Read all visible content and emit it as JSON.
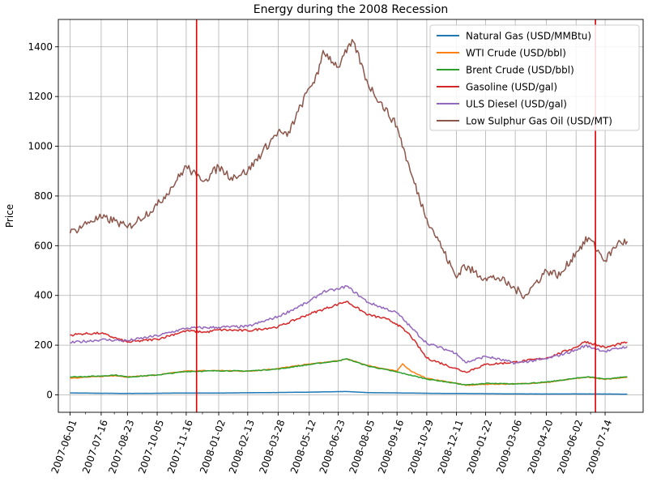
{
  "chart_data": {
    "type": "line",
    "title": "Energy during the 2008 Recession",
    "xlabel": "",
    "ylabel": "Price",
    "ylim": [
      -70,
      1510
    ],
    "xlim": [
      "2007-05-15",
      "2009-09-07"
    ],
    "grid": true,
    "legend_position": "top-right",
    "x_ticks": [
      "2007-06-01",
      "2007-07-16",
      "2007-08-23",
      "2007-10-05",
      "2007-11-16",
      "2008-01-02",
      "2008-02-13",
      "2008-03-28",
      "2008-05-12",
      "2008-06-23",
      "2008-08-05",
      "2008-09-16",
      "2008-10-29",
      "2008-12-11",
      "2009-01-22",
      "2009-03-06",
      "2009-04-20",
      "2009-06-02",
      "2009-07-14"
    ],
    "y_ticks": [
      0,
      200,
      400,
      600,
      800,
      1000,
      1200,
      1400
    ],
    "vertical_lines": [
      {
        "x": "2007-12-01",
        "color": "#e00000"
      },
      {
        "x": "2009-06-30",
        "color": "#e00000"
      }
    ],
    "series": [
      {
        "name": "Natural Gas (USD/MMBtu)",
        "color": "#1f77b4",
        "points": [
          [
            "2007-06-01",
            8
          ],
          [
            "2007-07-16",
            6.5
          ],
          [
            "2007-08-23",
            6
          ],
          [
            "2007-10-05",
            6.5
          ],
          [
            "2007-11-16",
            7.5
          ],
          [
            "2008-01-02",
            7.5
          ],
          [
            "2008-02-13",
            8.5
          ],
          [
            "2008-03-28",
            9.5
          ],
          [
            "2008-05-12",
            11
          ],
          [
            "2008-06-23",
            13
          ],
          [
            "2008-07-05",
            13.5
          ],
          [
            "2008-08-05",
            9
          ],
          [
            "2008-09-16",
            8
          ],
          [
            "2008-10-29",
            6.5
          ],
          [
            "2008-12-11",
            5.5
          ],
          [
            "2009-01-22",
            5
          ],
          [
            "2009-03-06",
            4
          ],
          [
            "2009-04-20",
            3.5
          ],
          [
            "2009-06-02",
            3.8
          ],
          [
            "2009-07-14",
            3.5
          ],
          [
            "2009-08-15",
            3
          ]
        ]
      },
      {
        "name": "WTI Crude (USD/bbl)",
        "color": "#ff7f0e",
        "points": [
          [
            "2007-06-01",
            68
          ],
          [
            "2007-07-16",
            74
          ],
          [
            "2007-08-05",
            78
          ],
          [
            "2007-08-23",
            72
          ],
          [
            "2007-10-05",
            80
          ],
          [
            "2007-11-16",
            96
          ],
          [
            "2008-01-02",
            98
          ],
          [
            "2008-02-13",
            95
          ],
          [
            "2008-03-28",
            106
          ],
          [
            "2008-05-12",
            124
          ],
          [
            "2008-06-23",
            137
          ],
          [
            "2008-07-05",
            145
          ],
          [
            "2008-08-05",
            118
          ],
          [
            "2008-09-16",
            95
          ],
          [
            "2008-09-24",
            125
          ],
          [
            "2008-10-05",
            98
          ],
          [
            "2008-10-29",
            66
          ],
          [
            "2008-12-11",
            47
          ],
          [
            "2008-12-24",
            38
          ],
          [
            "2009-01-22",
            43
          ],
          [
            "2009-03-06",
            44
          ],
          [
            "2009-04-20",
            50
          ],
          [
            "2009-06-02",
            66
          ],
          [
            "2009-06-20",
            72
          ],
          [
            "2009-07-14",
            62
          ],
          [
            "2009-08-15",
            72
          ]
        ]
      },
      {
        "name": "Brent Crude (USD/bbl)",
        "color": "#2ca02c",
        "points": [
          [
            "2007-06-01",
            72
          ],
          [
            "2007-07-16",
            76
          ],
          [
            "2007-08-05",
            80
          ],
          [
            "2007-08-23",
            72
          ],
          [
            "2007-10-05",
            80
          ],
          [
            "2007-11-16",
            94
          ],
          [
            "2008-01-02",
            97
          ],
          [
            "2008-02-13",
            96
          ],
          [
            "2008-03-28",
            104
          ],
          [
            "2008-05-12",
            122
          ],
          [
            "2008-06-23",
            137
          ],
          [
            "2008-07-05",
            145
          ],
          [
            "2008-08-05",
            116
          ],
          [
            "2008-09-16",
            92
          ],
          [
            "2008-10-29",
            64
          ],
          [
            "2008-12-11",
            46
          ],
          [
            "2008-12-24",
            40
          ],
          [
            "2009-01-22",
            46
          ],
          [
            "2009-03-06",
            44
          ],
          [
            "2009-04-20",
            51
          ],
          [
            "2009-06-02",
            67
          ],
          [
            "2009-06-20",
            73
          ],
          [
            "2009-07-14",
            64
          ],
          [
            "2009-08-15",
            73
          ]
        ]
      },
      {
        "name": "Gasoline (USD/gal)",
        "color": "#d62728",
        "points": [
          [
            "2007-06-01",
            240
          ],
          [
            "2007-06-15",
            245
          ],
          [
            "2007-07-16",
            248
          ],
          [
            "2007-08-23",
            212
          ],
          [
            "2007-10-05",
            224
          ],
          [
            "2007-11-16",
            258
          ],
          [
            "2007-12-15",
            252
          ],
          [
            "2008-01-02",
            262
          ],
          [
            "2008-02-13",
            258
          ],
          [
            "2008-03-28",
            274
          ],
          [
            "2008-05-12",
            325
          ],
          [
            "2008-06-23",
            365
          ],
          [
            "2008-07-05",
            376
          ],
          [
            "2008-08-05",
            322
          ],
          [
            "2008-09-01",
            305
          ],
          [
            "2008-09-16",
            285
          ],
          [
            "2008-10-05",
            240
          ],
          [
            "2008-10-29",
            148
          ],
          [
            "2008-12-11",
            105
          ],
          [
            "2008-12-24",
            92
          ],
          [
            "2009-01-22",
            122
          ],
          [
            "2009-03-06",
            132
          ],
          [
            "2009-04-20",
            148
          ],
          [
            "2009-06-02",
            192
          ],
          [
            "2009-06-15",
            215
          ],
          [
            "2009-07-14",
            190
          ],
          [
            "2009-08-15",
            212
          ]
        ]
      },
      {
        "name": "ULS Diesel (USD/gal)",
        "color": "#9467bd",
        "points": [
          [
            "2007-06-01",
            210
          ],
          [
            "2007-07-16",
            222
          ],
          [
            "2007-08-23",
            218
          ],
          [
            "2007-10-05",
            238
          ],
          [
            "2007-11-16",
            268
          ],
          [
            "2008-01-02",
            272
          ],
          [
            "2008-02-13",
            275
          ],
          [
            "2008-03-28",
            315
          ],
          [
            "2008-05-12",
            375
          ],
          [
            "2008-06-01",
            415
          ],
          [
            "2008-06-23",
            425
          ],
          [
            "2008-07-05",
            438
          ],
          [
            "2008-08-05",
            372
          ],
          [
            "2008-09-16",
            330
          ],
          [
            "2008-10-05",
            275
          ],
          [
            "2008-10-29",
            208
          ],
          [
            "2008-12-11",
            168
          ],
          [
            "2008-12-24",
            130
          ],
          [
            "2009-01-22",
            155
          ],
          [
            "2009-03-06",
            128
          ],
          [
            "2009-04-20",
            145
          ],
          [
            "2009-06-02",
            180
          ],
          [
            "2009-06-15",
            198
          ],
          [
            "2009-07-14",
            175
          ],
          [
            "2009-08-15",
            195
          ]
        ]
      },
      {
        "name": "Low Sulphur Gas Oil (USD/MT)",
        "color": "#8c564b",
        "points": [
          [
            "2007-06-01",
            650
          ],
          [
            "2007-07-01",
            700
          ],
          [
            "2007-07-16",
            712
          ],
          [
            "2007-08-05",
            700
          ],
          [
            "2007-08-23",
            672
          ],
          [
            "2007-10-05",
            762
          ],
          [
            "2007-11-01",
            858
          ],
          [
            "2007-11-16",
            920
          ],
          [
            "2007-12-01",
            878
          ],
          [
            "2007-12-15",
            868
          ],
          [
            "2008-01-02",
            918
          ],
          [
            "2008-01-20",
            875
          ],
          [
            "2008-02-13",
            900
          ],
          [
            "2008-03-28",
            1060
          ],
          [
            "2008-04-10",
            1040
          ],
          [
            "2008-05-12",
            1235
          ],
          [
            "2008-05-25",
            1290
          ],
          [
            "2008-06-01",
            1385
          ],
          [
            "2008-06-23",
            1318
          ],
          [
            "2008-07-01",
            1365
          ],
          [
            "2008-07-15",
            1420
          ],
          [
            "2008-08-05",
            1250
          ],
          [
            "2008-09-16",
            1080
          ],
          [
            "2008-10-05",
            900
          ],
          [
            "2008-10-29",
            710
          ],
          [
            "2008-11-15",
            620
          ],
          [
            "2008-12-11",
            470
          ],
          [
            "2008-12-20",
            520
          ],
          [
            "2009-01-22",
            470
          ],
          [
            "2009-02-10",
            470
          ],
          [
            "2009-03-06",
            425
          ],
          [
            "2009-03-20",
            400
          ],
          [
            "2009-04-20",
            500
          ],
          [
            "2009-05-10",
            480
          ],
          [
            "2009-06-02",
            575
          ],
          [
            "2009-06-20",
            632
          ],
          [
            "2009-07-14",
            540
          ],
          [
            "2009-08-01",
            610
          ],
          [
            "2009-08-15",
            618
          ]
        ]
      }
    ]
  }
}
